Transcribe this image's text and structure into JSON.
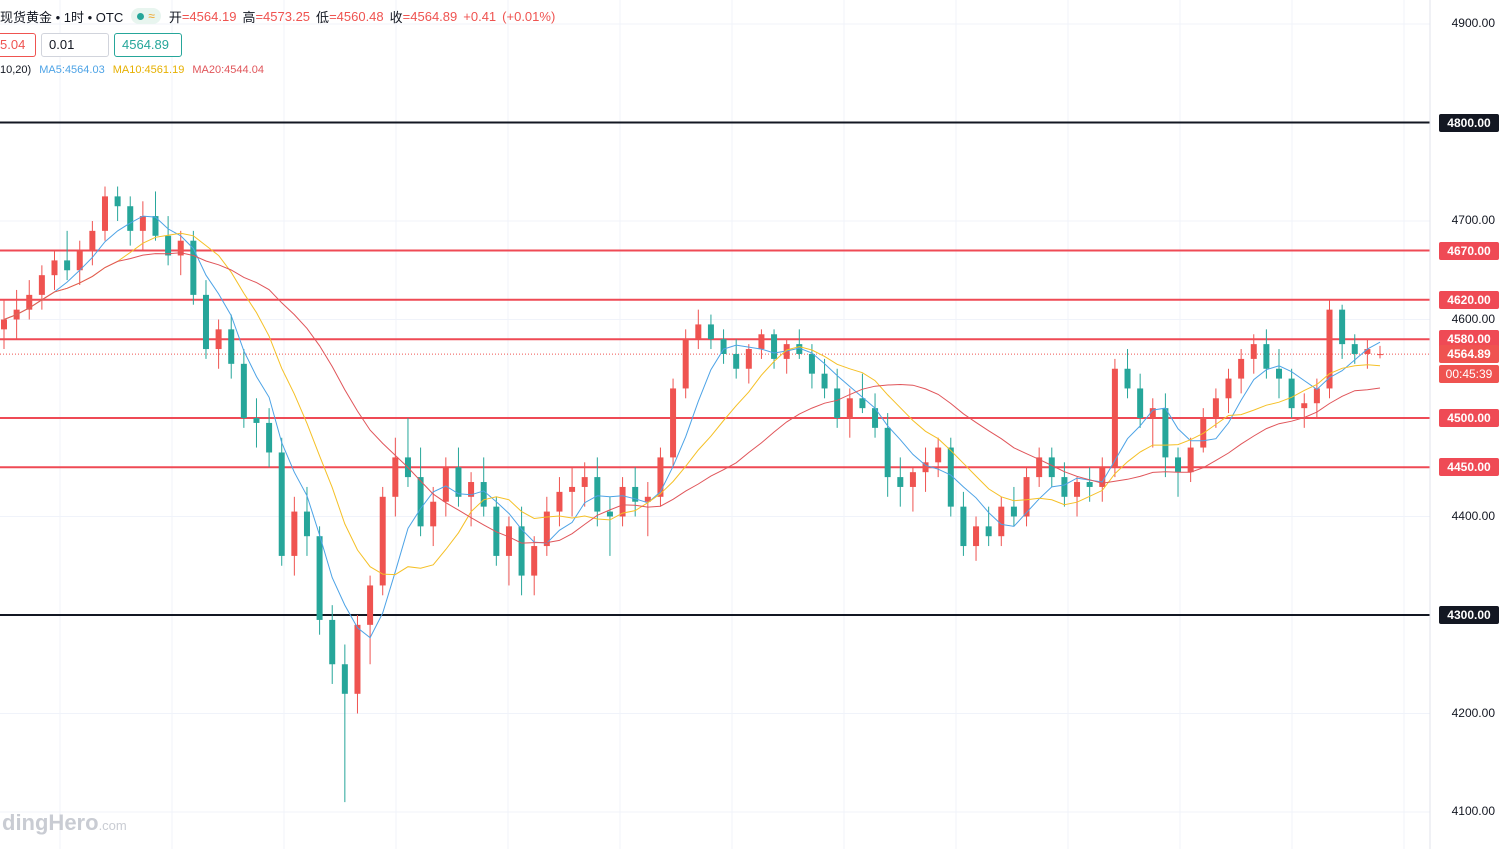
{
  "header": {
    "symbol": "现货黄金 • 1时 • OTC",
    "open_label": "开",
    "open": "=4564.19",
    "high_label": "高",
    "high": "=4573.25",
    "low_label": "低",
    "low": "=4560.48",
    "close_label": "收",
    "close": "=4564.89",
    "change": "+0.41",
    "change_pct": "(+0.01%)"
  },
  "trade": {
    "sell": "5.04",
    "spread": "0.01",
    "buy": "4564.89"
  },
  "ma_legend": {
    "params": "10,20)",
    "ma5": "MA5:4564.03",
    "ma10": "MA10:4561.19",
    "ma20": "MA20:4544.04"
  },
  "watermark": {
    "brand": "dingHero",
    "suffix": ".com"
  },
  "countdown": "00:45:39",
  "colors": {
    "up": "#ef5350",
    "down": "#26a69a",
    "ma5": "#4da3e6",
    "ma10": "#f5c026",
    "ma20": "#e0555a",
    "red_level": "#ef4a55",
    "black_level": "#131722"
  },
  "chart_data": {
    "type": "candlestick",
    "ylim": [
      4080,
      4920
    ],
    "yticks": [
      4100,
      4200,
      4300,
      4400,
      4500,
      4600,
      4700,
      4800,
      4900
    ],
    "ytick_labels": [
      "4100.00",
      "4200.00",
      "4300.00",
      "4400.00",
      "4500.00",
      "4600.00",
      "4700.00",
      "4800.00",
      "4900.00"
    ],
    "current_price": 4564.89,
    "current_label": "4564.89",
    "levels": [
      {
        "price": 4800,
        "label": "4800.00",
        "kind": "black"
      },
      {
        "price": 4670,
        "label": "4670.00",
        "kind": "red"
      },
      {
        "price": 4620,
        "label": "4620.00",
        "kind": "red"
      },
      {
        "price": 4580,
        "label": "4580.00",
        "kind": "red"
      },
      {
        "price": 4500,
        "label": "4500.00",
        "kind": "red"
      },
      {
        "price": 4450,
        "label": "4450.00",
        "kind": "red"
      },
      {
        "price": 4300,
        "label": "4300.00",
        "kind": "black"
      }
    ],
    "ohlc": [
      [
        4590,
        4620,
        4570,
        4600
      ],
      [
        4600,
        4630,
        4580,
        4610
      ],
      [
        4610,
        4640,
        4600,
        4625
      ],
      [
        4625,
        4655,
        4610,
        4645
      ],
      [
        4645,
        4670,
        4630,
        4660
      ],
      [
        4660,
        4690,
        4640,
        4650
      ],
      [
        4650,
        4680,
        4635,
        4670
      ],
      [
        4670,
        4700,
        4655,
        4690
      ],
      [
        4690,
        4735,
        4680,
        4725
      ],
      [
        4725,
        4735,
        4700,
        4715
      ],
      [
        4715,
        4725,
        4675,
        4690
      ],
      [
        4690,
        4720,
        4670,
        4705
      ],
      [
        4705,
        4730,
        4680,
        4685
      ],
      [
        4685,
        4705,
        4655,
        4665
      ],
      [
        4665,
        4690,
        4645,
        4680
      ],
      [
        4680,
        4690,
        4615,
        4625
      ],
      [
        4625,
        4640,
        4560,
        4570
      ],
      [
        4570,
        4600,
        4550,
        4590
      ],
      [
        4590,
        4605,
        4540,
        4555
      ],
      [
        4555,
        4570,
        4490,
        4500
      ],
      [
        4500,
        4520,
        4470,
        4495
      ],
      [
        4495,
        4510,
        4450,
        4465
      ],
      [
        4465,
        4480,
        4350,
        4360
      ],
      [
        4360,
        4420,
        4340,
        4405
      ],
      [
        4405,
        4430,
        4360,
        4380
      ],
      [
        4380,
        4390,
        4280,
        4295
      ],
      [
        4295,
        4310,
        4230,
        4250
      ],
      [
        4250,
        4270,
        4110,
        4220
      ],
      [
        4220,
        4300,
        4200,
        4290
      ],
      [
        4290,
        4340,
        4250,
        4330
      ],
      [
        4330,
        4430,
        4320,
        4420
      ],
      [
        4420,
        4480,
        4400,
        4460
      ],
      [
        4460,
        4500,
        4430,
        4440
      ],
      [
        4440,
        4470,
        4380,
        4390
      ],
      [
        4390,
        4430,
        4370,
        4415
      ],
      [
        4415,
        4460,
        4400,
        4450
      ],
      [
        4450,
        4470,
        4410,
        4420
      ],
      [
        4420,
        4445,
        4390,
        4435
      ],
      [
        4435,
        4460,
        4400,
        4410
      ],
      [
        4410,
        4420,
        4350,
        4360
      ],
      [
        4360,
        4400,
        4330,
        4390
      ],
      [
        4390,
        4410,
        4320,
        4340
      ],
      [
        4340,
        4380,
        4320,
        4370
      ],
      [
        4370,
        4420,
        4360,
        4405
      ],
      [
        4405,
        4440,
        4390,
        4425
      ],
      [
        4425,
        4450,
        4400,
        4430
      ],
      [
        4430,
        4455,
        4410,
        4440
      ],
      [
        4440,
        4460,
        4390,
        4405
      ],
      [
        4405,
        4420,
        4360,
        4400
      ],
      [
        4400,
        4440,
        4390,
        4430
      ],
      [
        4430,
        4450,
        4400,
        4415
      ],
      [
        4415,
        4435,
        4380,
        4420
      ],
      [
        4420,
        4470,
        4410,
        4460
      ],
      [
        4460,
        4540,
        4450,
        4530
      ],
      [
        4530,
        4590,
        4520,
        4580
      ],
      [
        4580,
        4610,
        4570,
        4595
      ],
      [
        4595,
        4605,
        4570,
        4580
      ],
      [
        4580,
        4590,
        4555,
        4565
      ],
      [
        4565,
        4580,
        4540,
        4550
      ],
      [
        4550,
        4575,
        4535,
        4570
      ],
      [
        4570,
        4590,
        4560,
        4585
      ],
      [
        4585,
        4590,
        4550,
        4560
      ],
      [
        4560,
        4580,
        4545,
        4575
      ],
      [
        4575,
        4590,
        4560,
        4565
      ],
      [
        4565,
        4575,
        4530,
        4545
      ],
      [
        4545,
        4560,
        4520,
        4530
      ],
      [
        4530,
        4550,
        4490,
        4500
      ],
      [
        4500,
        4530,
        4480,
        4520
      ],
      [
        4520,
        4545,
        4505,
        4510
      ],
      [
        4510,
        4525,
        4480,
        4490
      ],
      [
        4490,
        4505,
        4420,
        4440
      ],
      [
        4440,
        4460,
        4410,
        4430
      ],
      [
        4430,
        4450,
        4405,
        4445
      ],
      [
        4445,
        4470,
        4425,
        4455
      ],
      [
        4455,
        4480,
        4440,
        4470
      ],
      [
        4470,
        4480,
        4400,
        4410
      ],
      [
        4410,
        4425,
        4360,
        4370
      ],
      [
        4370,
        4400,
        4355,
        4390
      ],
      [
        4390,
        4410,
        4370,
        4380
      ],
      [
        4380,
        4420,
        4370,
        4410
      ],
      [
        4410,
        4430,
        4390,
        4400
      ],
      [
        4400,
        4450,
        4390,
        4440
      ],
      [
        4440,
        4470,
        4430,
        4460
      ],
      [
        4460,
        4470,
        4430,
        4440
      ],
      [
        4440,
        4455,
        4410,
        4420
      ],
      [
        4420,
        4440,
        4400,
        4435
      ],
      [
        4435,
        4450,
        4415,
        4430
      ],
      [
        4430,
        4460,
        4415,
        4450
      ],
      [
        4450,
        4560,
        4440,
        4550
      ],
      [
        4550,
        4570,
        4520,
        4530
      ],
      [
        4530,
        4545,
        4490,
        4500
      ],
      [
        4500,
        4520,
        4470,
        4510
      ],
      [
        4510,
        4525,
        4440,
        4460
      ],
      [
        4460,
        4470,
        4420,
        4445
      ],
      [
        4445,
        4480,
        4435,
        4470
      ],
      [
        4470,
        4510,
        4465,
        4500
      ],
      [
        4500,
        4530,
        4490,
        4520
      ],
      [
        4520,
        4550,
        4505,
        4540
      ],
      [
        4540,
        4570,
        4525,
        4560
      ],
      [
        4560,
        4585,
        4545,
        4575
      ],
      [
        4575,
        4590,
        4540,
        4550
      ],
      [
        4550,
        4570,
        4520,
        4540
      ],
      [
        4540,
        4550,
        4500,
        4510
      ],
      [
        4510,
        4525,
        4490,
        4515
      ],
      [
        4515,
        4540,
        4500,
        4530
      ],
      [
        4530,
        4620,
        4520,
        4610
      ],
      [
        4610,
        4615,
        4560,
        4575
      ],
      [
        4575,
        4585,
        4555,
        4565
      ],
      [
        4565,
        4580,
        4550,
        4570
      ],
      [
        4564.19,
        4573.25,
        4560.48,
        4564.89
      ]
    ]
  }
}
